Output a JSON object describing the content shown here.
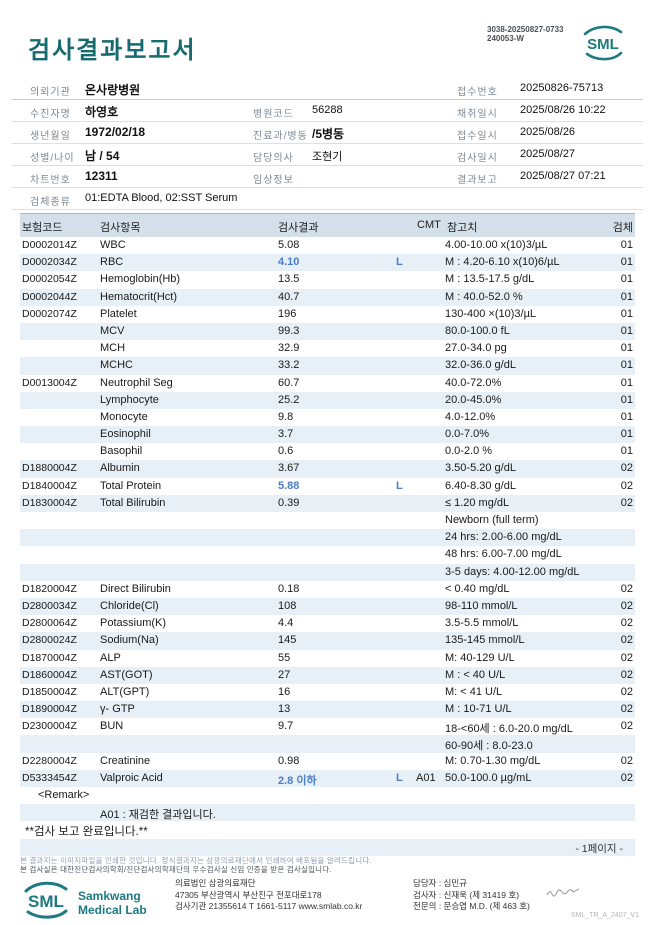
{
  "colors": {
    "brand_teal": "#176b70",
    "logo_teal": "#1d7a80",
    "abnormal_blue": "#4a7cc7",
    "table_header_bg": "#d3dfe9",
    "alt_row_bg": "#e7f0f6"
  },
  "header": {
    "title": "검사결과보고서",
    "code_line1": "3038-20250827-0733",
    "code_line2": "240053-W",
    "logo_text": "SML"
  },
  "info": {
    "client_label": "의뢰기관",
    "client": "온사랑병원",
    "receipt_no_label": "접수번호",
    "receipt_no": "20250826-75713",
    "patient_label": "수진자명",
    "patient": "하영호",
    "hospital_code_label": "병원코드",
    "hospital_code": "56288",
    "collected_label": "채취일시",
    "collected": "2025/08/26 10:22",
    "birth_label": "생년월일",
    "birth": "1972/02/18",
    "dept_label": "진료과/병동",
    "dept": "/5병동",
    "received_label": "접수일시",
    "received": "2025/08/26",
    "sex_age_label": "성별/나이",
    "sex_age": "남 / 54",
    "doctor_label": "담당의사",
    "doctor": "조현기",
    "tested_label": "검사일시",
    "tested": "2025/08/27",
    "chart_label": "차트번호",
    "chart": "12311",
    "clinical_label": "임상정보",
    "clinical": "",
    "reported_label": "결과보고",
    "reported": "2025/08/27 07:21",
    "specimen_label": "검체종류",
    "specimen": "01:EDTA Blood, 02:SST Serum"
  },
  "table": {
    "headers": {
      "code": "보험코드",
      "item": "검사항목",
      "result": "검사결과",
      "cmt": "CMT",
      "reference": "참고치",
      "specimen": "검체"
    },
    "rows": [
      {
        "code": "D0002014Z",
        "item": "WBC",
        "result": "5.08",
        "flag": "",
        "a01": "",
        "ref": "4.00-10.00 x(10)3/µL",
        "spec": "01"
      },
      {
        "code": "D0002034Z",
        "item": "RBC",
        "result": "4.10",
        "flag": "L",
        "a01": "",
        "ref": "M : 4.20-6.10 x(10)6/µL",
        "spec": "01"
      },
      {
        "code": "D0002054Z",
        "item": "Hemoglobin(Hb)",
        "result": "13.5",
        "flag": "",
        "a01": "",
        "ref": "M : 13.5-17.5 g/dL",
        "spec": "01"
      },
      {
        "code": "D0002044Z",
        "item": "Hematocrit(Hct)",
        "result": "40.7",
        "flag": "",
        "a01": "",
        "ref": "M : 40.0-52.0 %",
        "spec": "01"
      },
      {
        "code": "D0002074Z",
        "item": "Platelet",
        "result": "196",
        "flag": "",
        "a01": "",
        "ref": "130-400 ×(10)3/µL",
        "spec": "01"
      },
      {
        "code": "",
        "item": "MCV",
        "result": "99.3",
        "flag": "",
        "a01": "",
        "ref": "80.0-100.0 fL",
        "spec": "01"
      },
      {
        "code": "",
        "item": "MCH",
        "result": "32.9",
        "flag": "",
        "a01": "",
        "ref": "27.0-34.0 pg",
        "spec": "01"
      },
      {
        "code": "",
        "item": "MCHC",
        "result": "33.2",
        "flag": "",
        "a01": "",
        "ref": "32.0-36.0 g/dL",
        "spec": "01"
      },
      {
        "code": "D0013004Z",
        "item": "Neutrophil Seg",
        "result": "60.7",
        "flag": "",
        "a01": "",
        "ref": "40.0-72.0%",
        "spec": "01"
      },
      {
        "code": "",
        "item": "Lymphocyte",
        "result": "25.2",
        "flag": "",
        "a01": "",
        "ref": "20.0-45.0%",
        "spec": "01"
      },
      {
        "code": "",
        "item": "Monocyte",
        "result": "9.8",
        "flag": "",
        "a01": "",
        "ref": "4.0-12.0%",
        "spec": "01"
      },
      {
        "code": "",
        "item": "Eosinophil",
        "result": "3.7",
        "flag": "",
        "a01": "",
        "ref": "0.0-7.0%",
        "spec": "01"
      },
      {
        "code": "",
        "item": "Basophil",
        "result": "0.6",
        "flag": "",
        "a01": "",
        "ref": "0.0-2.0 %",
        "spec": "01"
      },
      {
        "code": "D1880004Z",
        "item": "Albumin",
        "result": "3.67",
        "flag": "",
        "a01": "",
        "ref": "3.50-5.20 g/dL",
        "spec": "02"
      },
      {
        "code": "D1840004Z",
        "item": "Total Protein",
        "result": "5.88",
        "flag": "L",
        "a01": "",
        "ref": "6.40-8.30 g/dL",
        "spec": "02"
      },
      {
        "code": "D1830004Z",
        "item": "Total Bilirubin",
        "result": "0.39",
        "flag": "",
        "a01": "",
        "ref": "≤ 1.20 mg/dL",
        "spec": "02"
      },
      {
        "note": "Newborn (full term)",
        "col": "ref"
      },
      {
        "note": "24 hrs: 2.00-6.00 mg/dL",
        "col": "ref"
      },
      {
        "note": "48 hrs: 6.00-7.00 mg/dL",
        "col": "ref"
      },
      {
        "note": "3-5 days: 4.00-12.00 mg/dL",
        "col": "ref"
      },
      {
        "code": "D1820004Z",
        "item": "Direct Bilirubin",
        "result": "0.18",
        "flag": "",
        "a01": "",
        "ref": "< 0.40 mg/dL",
        "spec": "02"
      },
      {
        "code": "D2800034Z",
        "item": "Chloride(Cl)",
        "result": "108",
        "flag": "",
        "a01": "",
        "ref": "98-110 mmol/L",
        "spec": "02"
      },
      {
        "code": "D2800064Z",
        "item": "Potassium(K)",
        "result": "4.4",
        "flag": "",
        "a01": "",
        "ref": "3.5-5.5 mmol/L",
        "spec": "02"
      },
      {
        "code": "D2800024Z",
        "item": "Sodium(Na)",
        "result": "145",
        "flag": "",
        "a01": "",
        "ref": "135-145 mmol/L",
        "spec": "02"
      },
      {
        "code": "D1870004Z",
        "item": "ALP",
        "result": "55",
        "flag": "",
        "a01": "",
        "ref": "M: 40-129 U/L",
        "spec": "02"
      },
      {
        "code": "D1860004Z",
        "item": "AST(GOT)",
        "result": "27",
        "flag": "",
        "a01": "",
        "ref": "M : < 40 U/L",
        "spec": "02"
      },
      {
        "code": "D1850004Z",
        "item": "ALT(GPT)",
        "result": "16",
        "flag": "",
        "a01": "",
        "ref": "M: < 41 U/L",
        "spec": "02"
      },
      {
        "code": "D1890004Z",
        "item": "γ- GTP",
        "result": "13",
        "flag": "",
        "a01": "",
        "ref": "M : 10-71 U/L",
        "spec": "02"
      },
      {
        "code": "D2300004Z",
        "item": "BUN",
        "result": "9.7",
        "flag": "",
        "a01": "",
        "ref": "18-<60세 : 6.0-20.0 mg/dL",
        "spec": "02"
      },
      {
        "note": "60-90세 : 8.0-23.0",
        "col": "ref"
      },
      {
        "code": "D2280004Z",
        "item": "Creatinine",
        "result": "0.98",
        "flag": "",
        "a01": "",
        "ref": "M: 0.70-1.30 mg/dL",
        "spec": "02"
      },
      {
        "code": "D5333454Z",
        "item": "Valproic Acid",
        "result": "2.8 이하",
        "flag": "L",
        "a01": "A01",
        "ref": "50.0-100.0 µg/mL",
        "spec": "02"
      },
      {
        "note": "<Remark>",
        "col": "remark"
      },
      {
        "note": "A01 : 재검한 결과입니다.",
        "col": "item"
      },
      {
        "note": "**검사 보고 완료입니다.**",
        "col": "left"
      },
      {
        "note": "- 1페이지 -",
        "col": "page"
      }
    ]
  },
  "footer": {
    "notice1": "본 결과지는 이미지파일을 인쇄한 것입니다. 정식결과지는 삼광의료재단에서 인쇄하여 배포됨을 알려드립니다.",
    "notice2": "본 검사실은 대한진단검사의학회/진단검사의학재단의 우수검사실 신임 인증을 받은 검사실입니다.",
    "brand_name_1": "Samkwang",
    "brand_name_2": "Medical Lab",
    "org": "의료법인 삼광의료재단",
    "address": "47305 부산광역시 부산진구 전포대로178",
    "contact": "검사기관 21355614 T 1661-5117 www.smlab.co.kr",
    "manager": "담당자 : 심민규",
    "examiner": "검사자 : 신재욱 (제 31419 호)",
    "specialist": "전문의 : 문승엽 M.D. (제 463 호)",
    "form_code": "SML_TR_A_2407_V1"
  }
}
